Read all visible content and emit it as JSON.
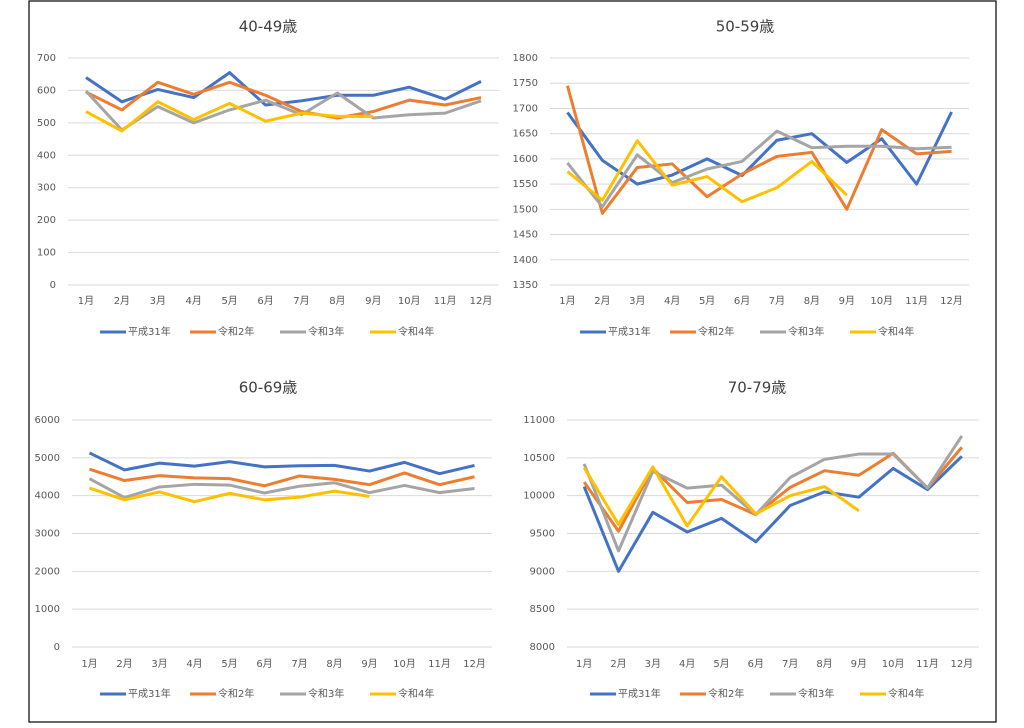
{
  "chart_data": [
    {
      "type": "line",
      "title": "40-49歳",
      "categories": [
        "1月",
        "2月",
        "3月",
        "4月",
        "5月",
        "6月",
        "7月",
        "8月",
        "9月",
        "10月",
        "11月",
        "12月"
      ],
      "ylim": [
        0,
        700
      ],
      "yticks": [
        0,
        100,
        200,
        300,
        400,
        500,
        600,
        700
      ],
      "grid": true,
      "series": [
        {
          "name": "平成31年",
          "color": "#4472c4",
          "values": [
            640,
            565,
            603,
            578,
            655,
            555,
            568,
            585,
            585,
            610,
            573,
            628
          ]
        },
        {
          "name": "令和2年",
          "color": "#ed7d31",
          "values": [
            595,
            540,
            625,
            588,
            625,
            585,
            535,
            515,
            535,
            570,
            555,
            578
          ]
        },
        {
          "name": "令和3年",
          "color": "#a5a5a5",
          "values": [
            598,
            478,
            550,
            500,
            540,
            570,
            525,
            592,
            515,
            525,
            530,
            568
          ]
        },
        {
          "name": "令和4年",
          "color": "#ffc000",
          "values": [
            535,
            475,
            565,
            510,
            560,
            505,
            530,
            520,
            520,
            null,
            null,
            null
          ]
        }
      ]
    },
    {
      "type": "line",
      "title": "50-59歳",
      "categories": [
        "1月",
        "2月",
        "3月",
        "4月",
        "5月",
        "6月",
        "7月",
        "8月",
        "9月",
        "10月",
        "11月",
        "12月"
      ],
      "ylim": [
        1350,
        1800
      ],
      "yticks": [
        1350,
        1400,
        1450,
        1500,
        1550,
        1600,
        1650,
        1700,
        1750,
        1800
      ],
      "grid": true,
      "series": [
        {
          "name": "平成31年",
          "color": "#4472c4",
          "values": [
            1692,
            1597,
            1550,
            1568,
            1600,
            1567,
            1637,
            1650,
            1593,
            1640,
            1550,
            1693
          ]
        },
        {
          "name": "令和2年",
          "color": "#ed7d31",
          "values": [
            1745,
            1492,
            1583,
            1590,
            1525,
            1570,
            1605,
            1613,
            1500,
            1658,
            1610,
            1615
          ]
        },
        {
          "name": "令和3年",
          "color": "#a5a5a5",
          "values": [
            1592,
            1505,
            1608,
            1553,
            1580,
            1595,
            1655,
            1622,
            1625,
            1625,
            1620,
            1623
          ]
        },
        {
          "name": "令和4年",
          "color": "#ffc000",
          "values": [
            1575,
            1518,
            1636,
            1548,
            1565,
            1515,
            1543,
            1595,
            1528,
            null,
            null,
            null
          ]
        }
      ]
    },
    {
      "type": "line",
      "title": "60-69歳",
      "categories": [
        "1月",
        "2月",
        "3月",
        "4月",
        "5月",
        "6月",
        "7月",
        "8月",
        "9月",
        "10月",
        "11月",
        "12月"
      ],
      "ylim": [
        0,
        6000
      ],
      "yticks": [
        0,
        1000,
        2000,
        3000,
        4000,
        5000,
        6000
      ],
      "grid": true,
      "series": [
        {
          "name": "平成31年",
          "color": "#4472c4",
          "values": [
            5130,
            4680,
            4860,
            4780,
            4900,
            4760,
            4790,
            4800,
            4650,
            4880,
            4580,
            4800
          ]
        },
        {
          "name": "令和2年",
          "color": "#ed7d31",
          "values": [
            4700,
            4400,
            4530,
            4470,
            4450,
            4260,
            4520,
            4430,
            4290,
            4600,
            4290,
            4500
          ]
        },
        {
          "name": "令和3年",
          "color": "#a5a5a5",
          "values": [
            4450,
            3950,
            4230,
            4300,
            4280,
            4070,
            4250,
            4340,
            4080,
            4270,
            4080,
            4190
          ]
        },
        {
          "name": "令和4年",
          "color": "#ffc000",
          "values": [
            4200,
            3890,
            4100,
            3840,
            4060,
            3890,
            3960,
            4120,
            3980,
            null,
            null,
            null
          ]
        }
      ]
    },
    {
      "type": "line",
      "title": "70-79歳",
      "categories": [
        "1月",
        "2月",
        "3月",
        "4月",
        "5月",
        "6月",
        "7月",
        "8月",
        "9月",
        "10月",
        "11月",
        "12月"
      ],
      "ylim": [
        8000,
        11000
      ],
      "yticks": [
        8000,
        8500,
        9000,
        9500,
        10000,
        10500,
        11000
      ],
      "grid": true,
      "series": [
        {
          "name": "平成31年",
          "color": "#4472c4",
          "values": [
            10120,
            9000,
            9780,
            9520,
            9700,
            9390,
            9870,
            10050,
            9980,
            10360,
            10080,
            10520
          ]
        },
        {
          "name": "令和2年",
          "color": "#ed7d31",
          "values": [
            10180,
            9530,
            10360,
            9910,
            9950,
            9750,
            10110,
            10330,
            10270,
            10560,
            10100,
            10640
          ]
        },
        {
          "name": "令和3年",
          "color": "#a5a5a5",
          "values": [
            10420,
            9270,
            10320,
            10100,
            10140,
            9750,
            10240,
            10480,
            10550,
            10550,
            10100,
            10790
          ]
        },
        {
          "name": "令和4年",
          "color": "#ffc000",
          "values": [
            10370,
            9620,
            10380,
            9600,
            10250,
            9760,
            10000,
            10120,
            9800,
            null,
            null,
            null
          ]
        }
      ]
    }
  ]
}
